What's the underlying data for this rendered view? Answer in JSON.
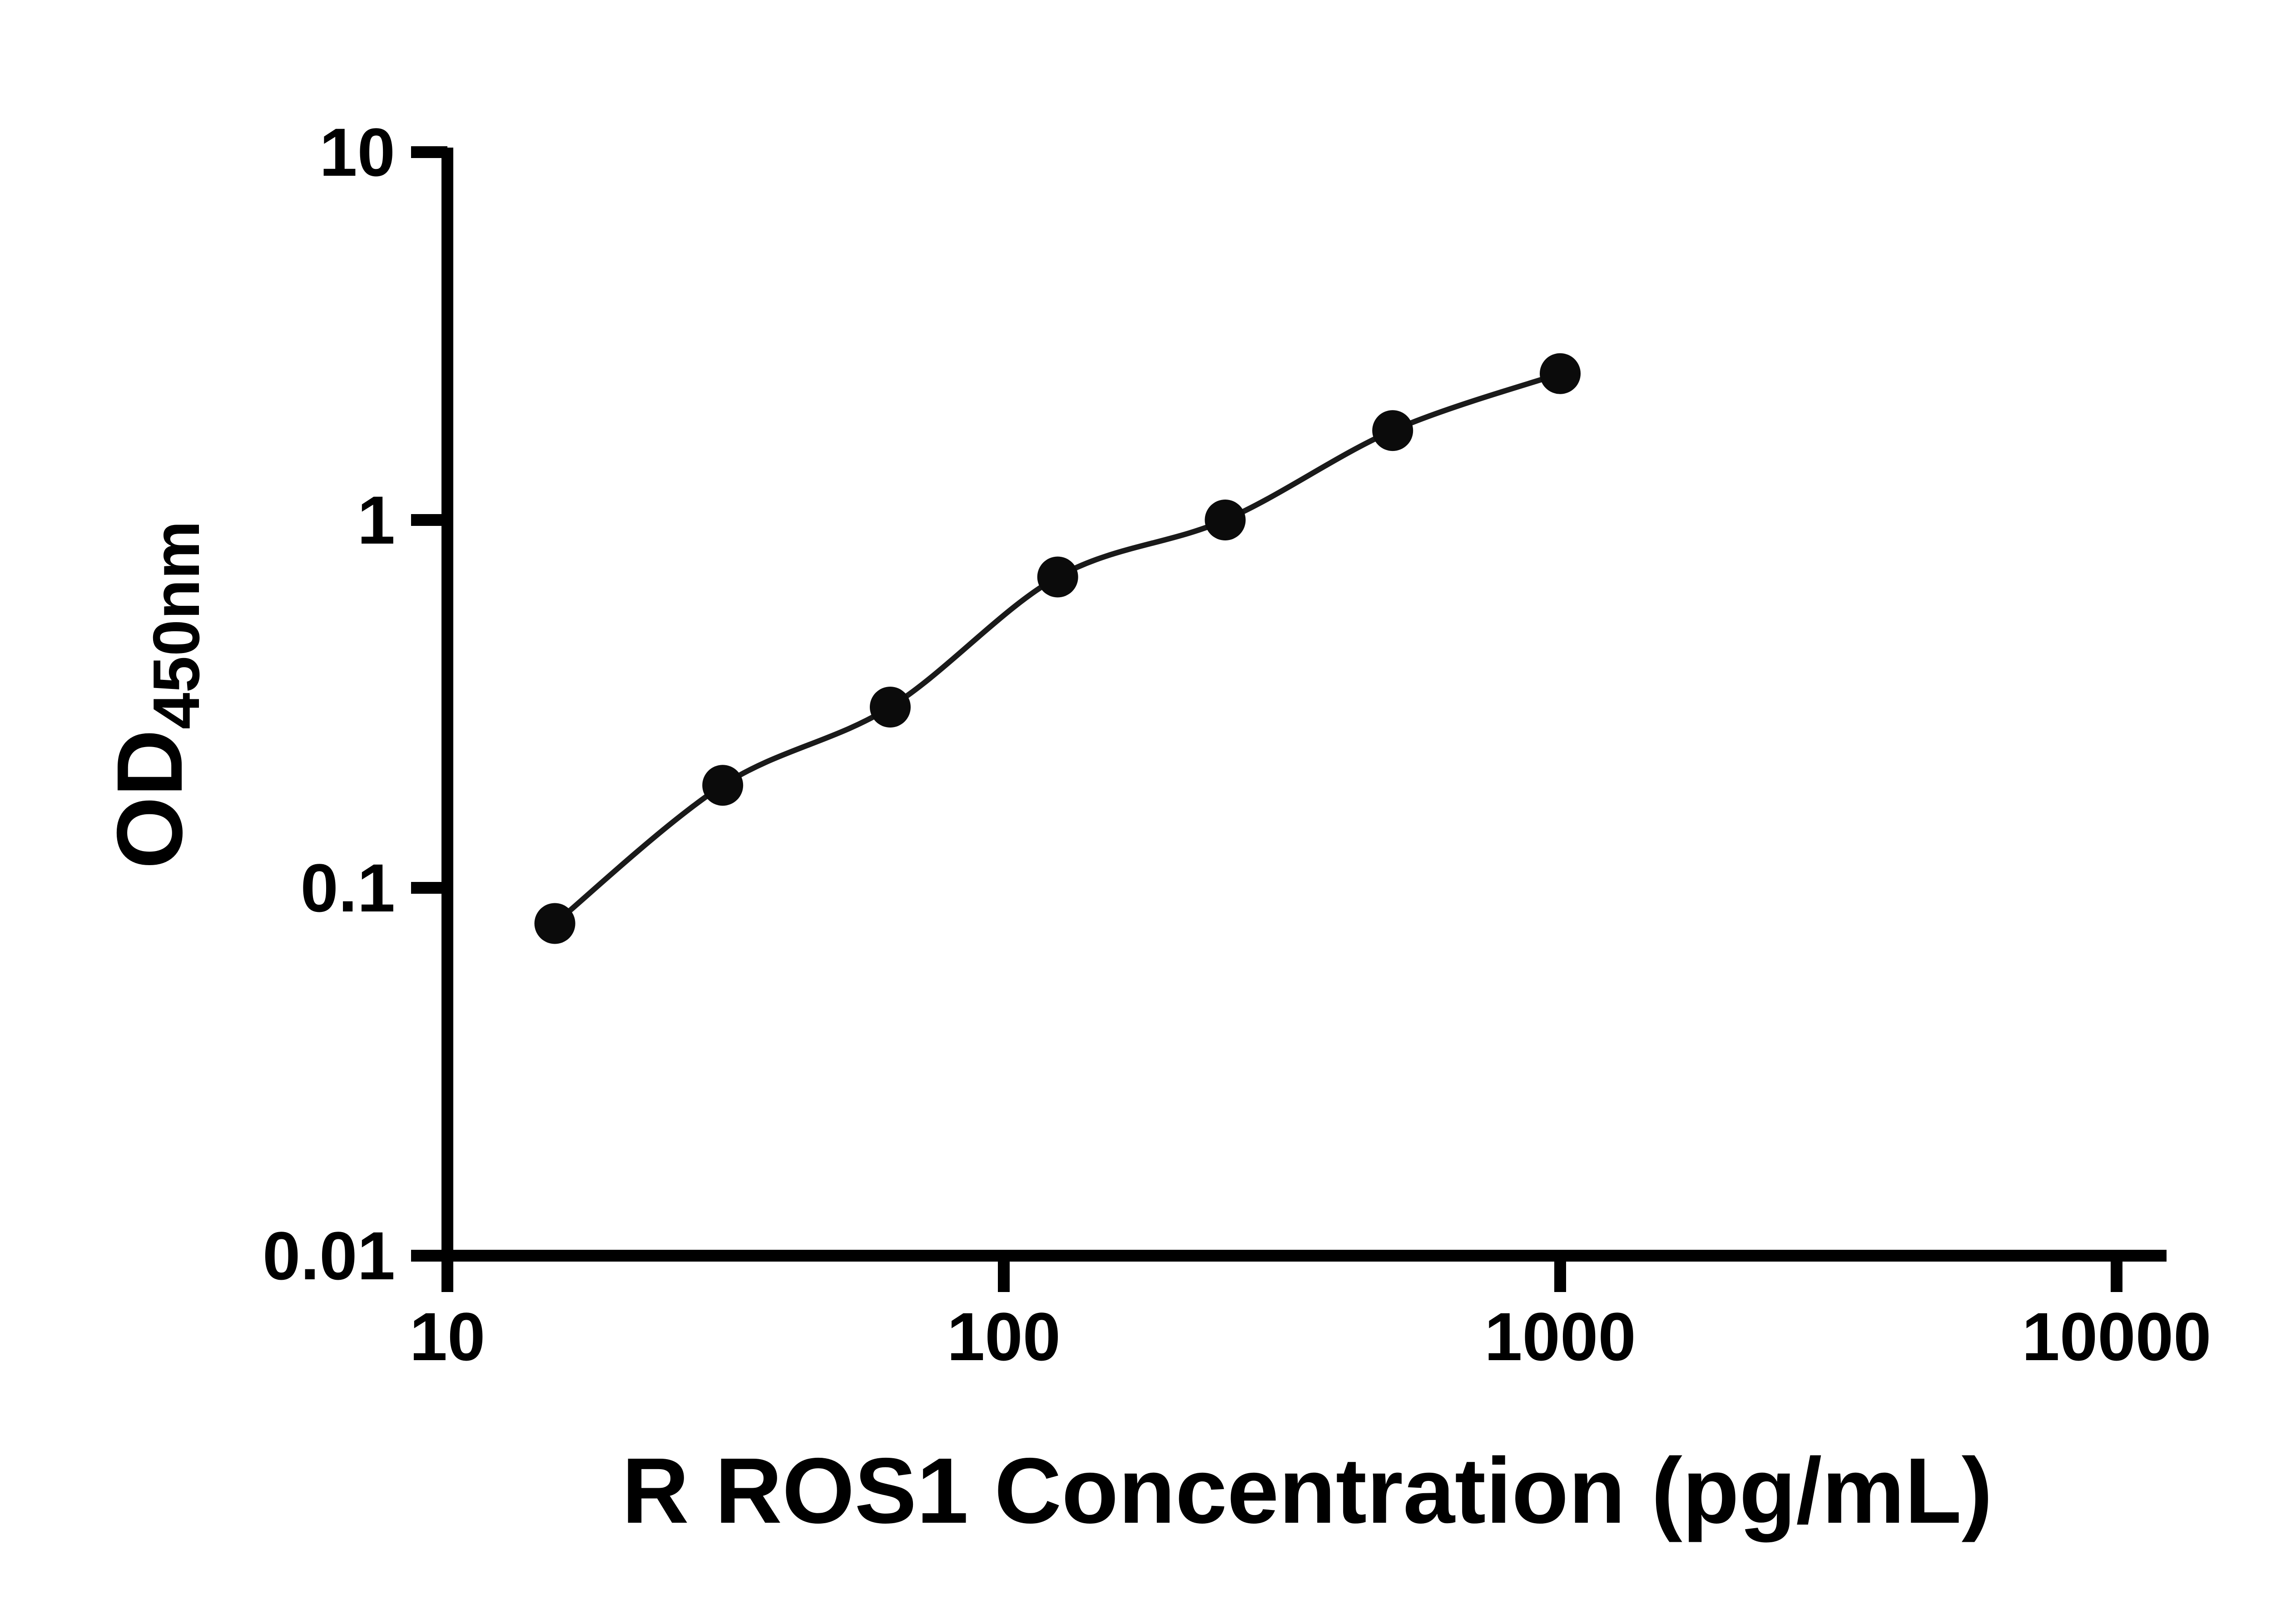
{
  "figure": {
    "background": "#ffffff"
  },
  "chart_data": {
    "type": "scatter",
    "title": "",
    "xlabel": "R ROS1 Concentration (pg/mL)",
    "ylabel_main": "OD",
    "ylabel_sub": "450nm",
    "x_scale": "log",
    "y_scale": "log",
    "xlim": [
      10,
      10000
    ],
    "ylim": [
      0.01,
      10
    ],
    "grid": false,
    "legend": "none",
    "x_ticks": [
      {
        "value": 10,
        "label": "10"
      },
      {
        "value": 100,
        "label": "100"
      },
      {
        "value": 1000,
        "label": "1000"
      },
      {
        "value": 10000,
        "label": "10000"
      }
    ],
    "y_ticks": [
      {
        "value": 0.01,
        "label": "0.01"
      },
      {
        "value": 0.1,
        "label": "0.1"
      },
      {
        "value": 1,
        "label": "1"
      },
      {
        "value": 10,
        "label": "10"
      }
    ],
    "series": [
      {
        "marker": "circle",
        "line": "smooth-fit",
        "x": [
          15.6,
          31.25,
          62.5,
          125,
          250,
          500,
          1000
        ],
        "y": [
          0.08,
          0.19,
          0.31,
          0.7,
          1.0,
          1.75,
          2.5
        ]
      }
    ],
    "colors": {
      "axis": "#000000",
      "marker": "#0b0b0b",
      "curve": "#1a1a1a",
      "text": "#000000"
    }
  }
}
